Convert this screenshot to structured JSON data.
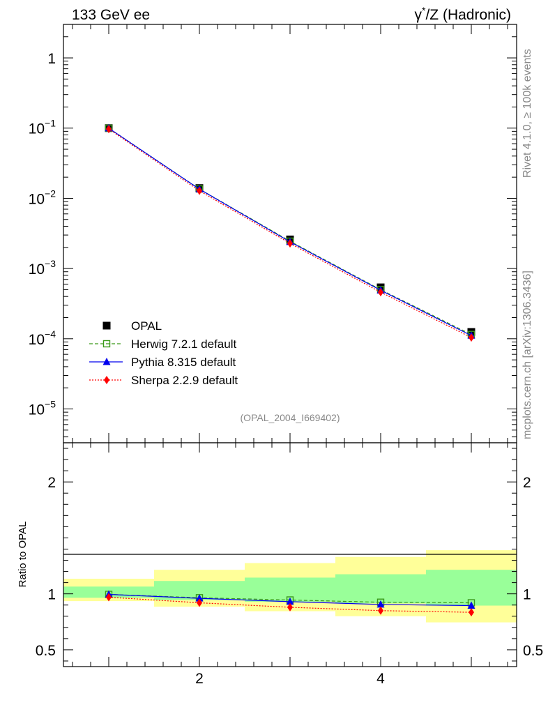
{
  "header": {
    "left_title": "133 GeV ee",
    "right_title_gamma": "γ",
    "right_title_rest": "/Z (Hadronic)",
    "right_title_star": "*"
  },
  "side_labels": {
    "rivet": "Rivet 4.1.0, ≥ 100k events",
    "mcplots": "mcplots.cern.ch [arXiv:1306.3436]"
  },
  "watermark": "(OPAL_2004_I669402)",
  "ratio_ylabel": "Ratio to OPAL",
  "chart_data": [
    {
      "type": "scatter",
      "panel": "main",
      "yscale": "log",
      "ylim": [
        3.3e-06,
        3
      ],
      "xlim": [
        0.5,
        5.5
      ],
      "y_tick_labels": [
        {
          "value": 1,
          "base": "1",
          "exp": ""
        },
        {
          "value": 0.1,
          "base": "10",
          "exp": "−1"
        },
        {
          "value": 0.01,
          "base": "10",
          "exp": "−2"
        },
        {
          "value": 0.001,
          "base": "10",
          "exp": "−3"
        },
        {
          "value": 0.0001,
          "base": "10",
          "exp": "−4"
        },
        {
          "value": 1e-05,
          "base": "10",
          "exp": "−5"
        }
      ],
      "x": [
        1,
        2,
        3,
        4,
        5
      ],
      "series": [
        {
          "name": "OPAL",
          "key": "data",
          "color": "#000000",
          "marker": "square-filled",
          "values": [
            0.1,
            0.014,
            0.0026,
            0.00054,
            0.000125
          ]
        },
        {
          "name": "Herwig 7.2.1 default",
          "key": "herwig",
          "color": "#3a9a1a",
          "marker": "square-open",
          "line": "dashed",
          "values": [
            0.0997,
            0.0136,
            0.00245,
            0.0005,
            0.000115
          ]
        },
        {
          "name": "Pythia 8.315 default",
          "key": "pythia",
          "color": "#0000ee",
          "marker": "triangle",
          "line": "solid",
          "values": [
            0.0996,
            0.0135,
            0.0024,
            0.00049,
            0.000111
          ]
        },
        {
          "name": "Sherpa 2.2.9 default",
          "key": "sherpa",
          "color": "#ff0000",
          "marker": "diamond",
          "line": "dotted",
          "values": [
            0.097,
            0.0128,
            0.00228,
            0.00046,
            0.000104
          ]
        }
      ]
    },
    {
      "type": "line",
      "panel": "ratio",
      "ylim": [
        0.35,
        2.35
      ],
      "xlim": [
        0.5,
        5.5
      ],
      "xlabel": "",
      "ylabel": "Ratio to OPAL",
      "x_tick_labels": [
        "2",
        "4"
      ],
      "x_tick_values": [
        2,
        4
      ],
      "y_tick_labels": [
        "0.5",
        "1",
        "2"
      ],
      "y_tick_values": [
        0.5,
        1,
        2
      ],
      "uncertainty_bands": {
        "bins": [
          [
            0.5,
            1.5
          ],
          [
            1.5,
            2.5
          ],
          [
            2.5,
            3.5
          ],
          [
            3.5,
            4.5
          ],
          [
            4.5,
            5.5
          ]
        ],
        "stat_sys_inner": [
          [
            0.965,
            1.065
          ],
          [
            0.945,
            1.115
          ],
          [
            0.93,
            1.145
          ],
          [
            0.915,
            1.175
          ],
          [
            0.895,
            1.215
          ]
        ],
        "total_outer": [
          [
            0.935,
            1.135
          ],
          [
            0.885,
            1.215
          ],
          [
            0.845,
            1.275
          ],
          [
            0.8,
            1.33
          ],
          [
            0.745,
            1.39
          ]
        ],
        "inner_color": "#99ff99",
        "outer_color": "#ffff99"
      },
      "x": [
        1,
        2,
        3,
        4,
        5
      ],
      "series": [
        {
          "name": "Herwig 7.2.1 default",
          "key": "herwig",
          "values": [
            0.995,
            0.965,
            0.945,
            0.925,
            0.92
          ]
        },
        {
          "name": "Pythia 8.315 default",
          "key": "pythia",
          "values": [
            0.995,
            0.96,
            0.93,
            0.905,
            0.895
          ]
        },
        {
          "name": "Sherpa 2.2.9 default",
          "key": "sherpa",
          "values": [
            0.97,
            0.92,
            0.88,
            0.85,
            0.835
          ]
        }
      ]
    }
  ]
}
